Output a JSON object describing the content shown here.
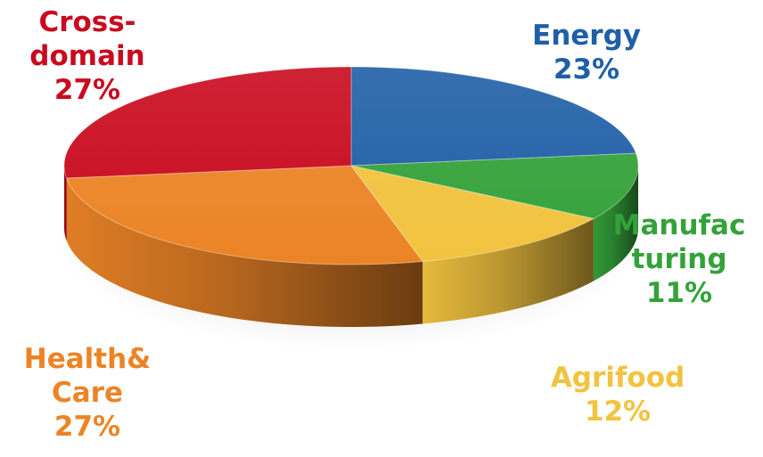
{
  "chart_data": {
    "type": "pie",
    "style": "3d",
    "title": "",
    "slices": [
      {
        "label_lines": [
          "Energy",
          "23%"
        ],
        "value": 23,
        "color": "#1F5FA6"
      },
      {
        "label_lines": [
          "Manufac",
          "turing",
          "11%"
        ],
        "value": 11,
        "color": "#34A23A"
      },
      {
        "label_lines": [
          "Agrifood",
          "12%"
        ],
        "value": 12,
        "color": "#F2C33F"
      },
      {
        "label_lines": [
          "Health&",
          "Care",
          "27%"
        ],
        "value": 27,
        "color": "#EB8426"
      },
      {
        "label_lines": [
          "Cross-",
          "domain",
          "27%"
        ],
        "value": 27,
        "color": "#C90A1E"
      }
    ]
  }
}
